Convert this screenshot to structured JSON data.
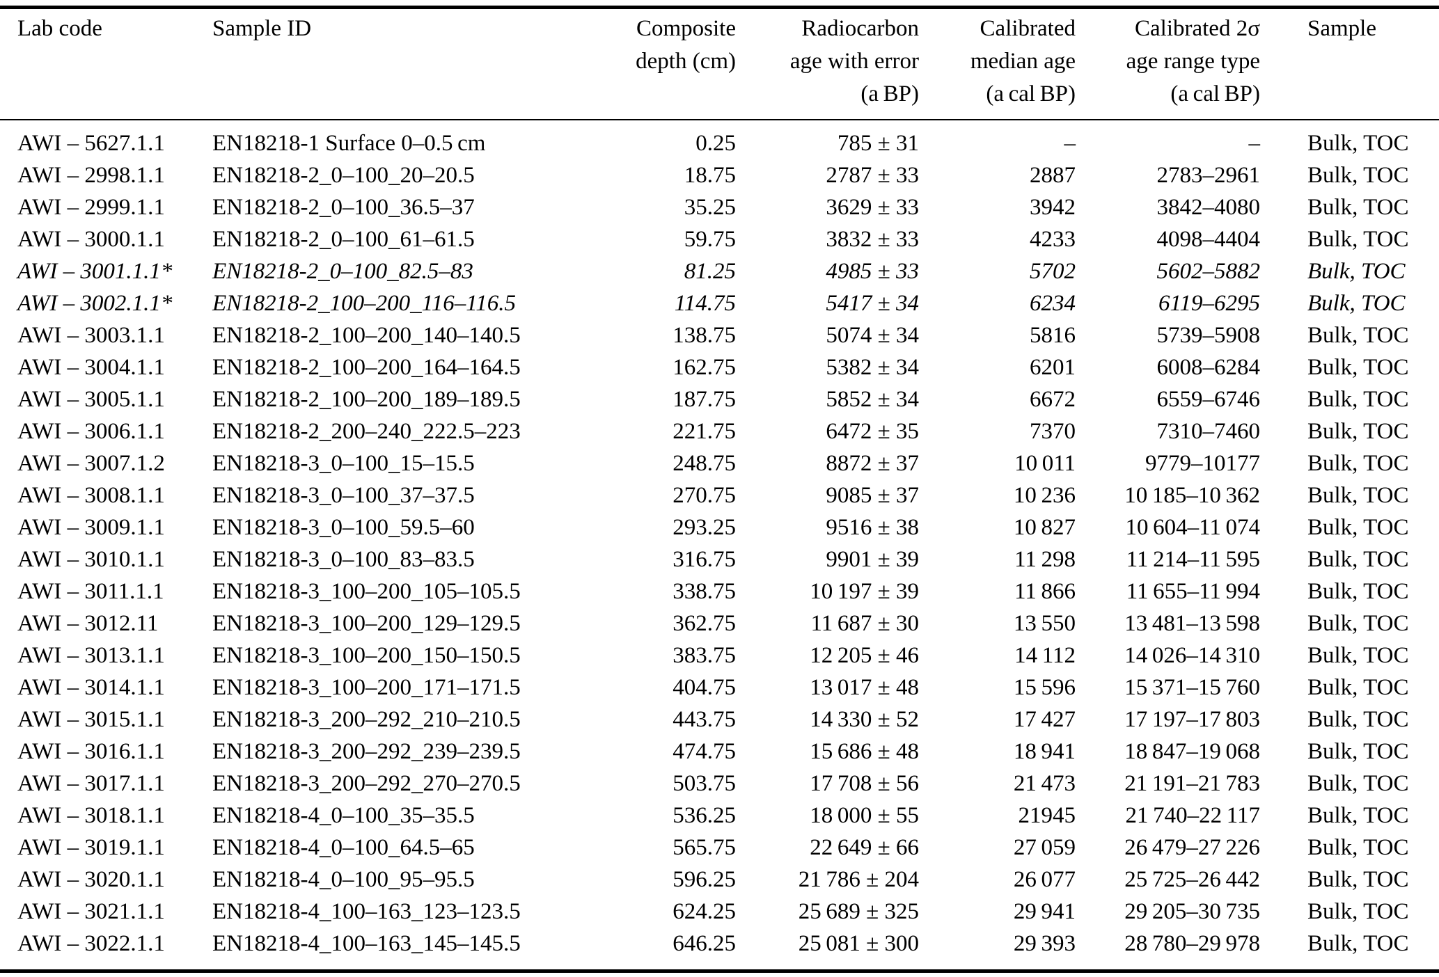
{
  "document": {
    "kind": "radiocarbon-age-table",
    "text_color": "#000000",
    "background_color": "#ffffff"
  },
  "table": {
    "columns": [
      {
        "id": "lab_code",
        "align": "left",
        "header_lines": [
          "Lab code"
        ]
      },
      {
        "id": "sample_id",
        "align": "left",
        "header_lines": [
          "Sample ID"
        ]
      },
      {
        "id": "composite_depth",
        "align": "right",
        "header_lines": [
          "Composite",
          "depth (cm)"
        ]
      },
      {
        "id": "radiocarbon_age",
        "align": "right",
        "header_lines": [
          "Radiocarbon",
          "age with error",
          "(a BP)"
        ]
      },
      {
        "id": "median_age",
        "align": "right",
        "header_lines": [
          "Calibrated",
          "median age",
          "(a cal BP)"
        ]
      },
      {
        "id": "age_range",
        "align": "right",
        "header_lines": [
          "Calibrated 2σ",
          "age range type",
          "(a cal BP)"
        ]
      },
      {
        "id": "sample",
        "align": "left",
        "header_lines": [
          "Sample"
        ]
      }
    ],
    "rows": [
      {
        "italic": false,
        "cells": [
          "AWI – 5627.1.1",
          "EN18218-1 Surface 0–0.5 cm",
          "0.25",
          "785 ± 31",
          "–",
          "–",
          "Bulk, TOC"
        ]
      },
      {
        "italic": false,
        "cells": [
          "AWI – 2998.1.1",
          "EN18218-2_0–100_20–20.5",
          "18.75",
          "2787 ± 33",
          "2887",
          "2783–2961",
          "Bulk, TOC"
        ]
      },
      {
        "italic": false,
        "cells": [
          "AWI – 2999.1.1",
          "EN18218-2_0–100_36.5–37",
          "35.25",
          "3629 ± 33",
          "3942",
          "3842–4080",
          "Bulk, TOC"
        ]
      },
      {
        "italic": false,
        "cells": [
          "AWI – 3000.1.1",
          "EN18218-2_0–100_61–61.5",
          "59.75",
          "3832 ± 33",
          "4233",
          "4098–4404",
          "Bulk, TOC"
        ]
      },
      {
        "italic": true,
        "cells": [
          "AWI – 3001.1.1*",
          "EN18218-2_0–100_82.5–83",
          "81.25",
          "4985 ± 33",
          "5702",
          "5602–5882",
          "Bulk, TOC"
        ]
      },
      {
        "italic": true,
        "cells": [
          "AWI – 3002.1.1*",
          "EN18218-2_100–200_116–116.5",
          "114.75",
          "5417 ± 34",
          "6234",
          "6119–6295",
          "Bulk, TOC"
        ]
      },
      {
        "italic": false,
        "cells": [
          "AWI – 3003.1.1",
          "EN18218-2_100–200_140–140.5",
          "138.75",
          "5074 ± 34",
          "5816",
          "5739–5908",
          "Bulk, TOC"
        ]
      },
      {
        "italic": false,
        "cells": [
          "AWI – 3004.1.1",
          "EN18218-2_100–200_164–164.5",
          "162.75",
          "5382 ± 34",
          "6201",
          "6008–6284",
          "Bulk, TOC"
        ]
      },
      {
        "italic": false,
        "cells": [
          "AWI – 3005.1.1",
          "EN18218-2_100–200_189–189.5",
          "187.75",
          "5852 ± 34",
          "6672",
          "6559–6746",
          "Bulk, TOC"
        ]
      },
      {
        "italic": false,
        "cells": [
          "AWI – 3006.1.1",
          "EN18218-2_200–240_222.5–223",
          "221.75",
          "6472 ± 35",
          "7370",
          "7310–7460",
          "Bulk, TOC"
        ]
      },
      {
        "italic": false,
        "cells": [
          "AWI – 3007.1.2",
          "EN18218-3_0–100_15–15.5",
          "248.75",
          "8872 ± 37",
          "10 011",
          "9779–10177",
          "Bulk, TOC"
        ]
      },
      {
        "italic": false,
        "cells": [
          "AWI – 3008.1.1",
          "EN18218-3_0–100_37–37.5",
          "270.75",
          "9085 ± 37",
          "10 236",
          "10 185–10 362",
          "Bulk, TOC"
        ]
      },
      {
        "italic": false,
        "cells": [
          "AWI – 3009.1.1",
          "EN18218-3_0–100_59.5–60",
          "293.25",
          "9516 ± 38",
          "10 827",
          "10 604–11 074",
          "Bulk, TOC"
        ]
      },
      {
        "italic": false,
        "cells": [
          "AWI – 3010.1.1",
          "EN18218-3_0–100_83–83.5",
          "316.75",
          "9901 ± 39",
          "11 298",
          "11 214–11 595",
          "Bulk, TOC"
        ]
      },
      {
        "italic": false,
        "cells": [
          "AWI – 3011.1.1",
          "EN18218-3_100–200_105–105.5",
          "338.75",
          "10 197 ± 39",
          "11 866",
          "11 655–11 994",
          "Bulk, TOC"
        ]
      },
      {
        "italic": false,
        "cells": [
          "AWI – 3012.11",
          "EN18218-3_100–200_129–129.5",
          "362.75",
          "11 687 ± 30",
          "13 550",
          "13 481–13 598",
          "Bulk, TOC"
        ]
      },
      {
        "italic": false,
        "cells": [
          "AWI – 3013.1.1",
          "EN18218-3_100–200_150–150.5",
          "383.75",
          "12 205 ± 46",
          "14 112",
          "14 026–14 310",
          "Bulk, TOC"
        ]
      },
      {
        "italic": false,
        "cells": [
          "AWI – 3014.1.1",
          "EN18218-3_100–200_171–171.5",
          "404.75",
          "13 017 ± 48",
          "15 596",
          "15 371–15 760",
          "Bulk, TOC"
        ]
      },
      {
        "italic": false,
        "cells": [
          "AWI – 3015.1.1",
          "EN18218-3_200–292_210–210.5",
          "443.75",
          "14 330 ± 52",
          "17 427",
          "17 197–17 803",
          "Bulk, TOC"
        ]
      },
      {
        "italic": false,
        "cells": [
          "AWI – 3016.1.1",
          "EN18218-3_200–292_239–239.5",
          "474.75",
          "15 686 ± 48",
          "18 941",
          "18 847–19 068",
          "Bulk, TOC"
        ]
      },
      {
        "italic": false,
        "cells": [
          "AWI – 3017.1.1",
          "EN18218-3_200–292_270–270.5",
          "503.75",
          "17 708 ± 56",
          "21 473",
          "21 191–21 783",
          "Bulk, TOC"
        ]
      },
      {
        "italic": false,
        "cells": [
          "AWI – 3018.1.1",
          "EN18218-4_0–100_35–35.5",
          "536.25",
          "18 000 ± 55",
          "21945",
          "21 740–22 117",
          "Bulk, TOC"
        ]
      },
      {
        "italic": false,
        "cells": [
          "AWI – 3019.1.1",
          "EN18218-4_0–100_64.5–65",
          "565.75",
          "22 649 ± 66",
          "27 059",
          "26 479–27 226",
          "Bulk, TOC"
        ]
      },
      {
        "italic": false,
        "cells": [
          "AWI – 3020.1.1",
          "EN18218-4_0–100_95–95.5",
          "596.25",
          "21 786 ± 204",
          "26 077",
          "25 725–26 442",
          "Bulk, TOC"
        ]
      },
      {
        "italic": false,
        "cells": [
          "AWI – 3021.1.1",
          "EN18218-4_100–163_123–123.5",
          "624.25",
          "25 689 ± 325",
          "29 941",
          "29 205–30 735",
          "Bulk, TOC"
        ]
      },
      {
        "italic": false,
        "cells": [
          "AWI – 3022.1.1",
          "EN18218-4_100–163_145–145.5",
          "646.25",
          "25 081 ± 300",
          "29 393",
          "28 780–29 978",
          "Bulk, TOC"
        ]
      }
    ]
  }
}
